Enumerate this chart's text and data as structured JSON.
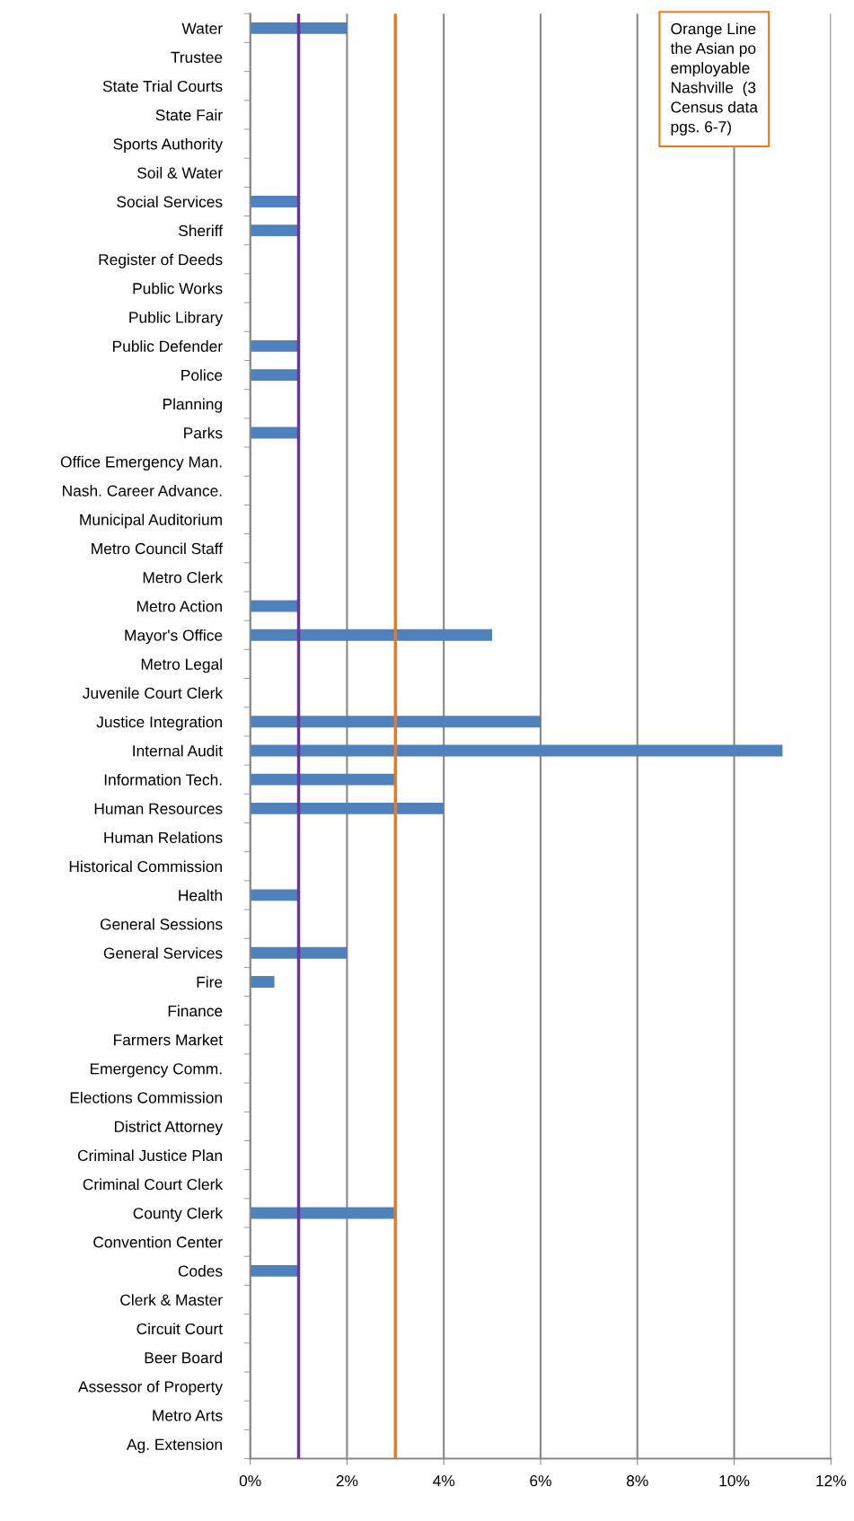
{
  "chart_data": {
    "type": "bar",
    "orientation": "horizontal",
    "categories": [
      "Water",
      "Trustee",
      "State Trial Courts",
      "State Fair",
      "Sports Authority",
      "Soil & Water",
      "Social Services",
      "Sheriff",
      "Register of Deeds",
      "Public Works",
      "Public Library",
      "Public Defender",
      "Police",
      "Planning",
      "Parks",
      "Office Emergency Man.",
      "Nash. Career Advance.",
      "Municipal Auditorium",
      "Metro Council Staff",
      "Metro Clerk",
      "Metro Action",
      "Mayor's Office",
      "Metro Legal",
      "Juvenile Court Clerk",
      "Justice Integration",
      "Internal Audit",
      "Information Tech.",
      "Human Resources",
      "Human Relations",
      "Historical Commission",
      "Health",
      "General Sessions",
      "General Services",
      "Fire",
      "Finance",
      "Farmers Market",
      "Emergency Comm.",
      "Elections Commission",
      "District Attorney",
      "Criminal Justice Plan",
      "Criminal Court Clerk",
      "County Clerk",
      "Convention Center",
      "Codes",
      "Clerk & Master",
      "Circuit Court",
      "Beer Board",
      "Assessor of Property",
      "Metro Arts",
      "Ag. Extension"
    ],
    "values": [
      2,
      0,
      0,
      0,
      0,
      0,
      1,
      1,
      0,
      0,
      0,
      1,
      1,
      0,
      1,
      0,
      0,
      0,
      0,
      0,
      1,
      5,
      0,
      0,
      6,
      11,
      3,
      4,
      0,
      0,
      1,
      0,
      2,
      0.5,
      0,
      0,
      0,
      0,
      0,
      0,
      0,
      3,
      0,
      1,
      0,
      0,
      0,
      0,
      0,
      0
    ],
    "color": "#4f81bd",
    "xlim": [
      0,
      12
    ],
    "xticks": [
      {
        "value": 0,
        "label": "0%"
      },
      {
        "value": 2,
        "label": "2%"
      },
      {
        "value": 4,
        "label": "4%"
      },
      {
        "value": 6,
        "label": "6%"
      },
      {
        "value": 8,
        "label": "8%"
      },
      {
        "value": 10,
        "label": "10%"
      },
      {
        "value": 12,
        "label": "12%"
      }
    ],
    "grid": "x",
    "ref_lines": [
      {
        "axis": "x",
        "value": 1,
        "color": "#7030a0"
      },
      {
        "axis": "x",
        "value": 3,
        "color": "#f07818"
      }
    ],
    "annotations": [
      "Orange Line\nthe Asian po\nemployable\nNashville  (3\nCensus data\npgs. 6-7)"
    ]
  }
}
